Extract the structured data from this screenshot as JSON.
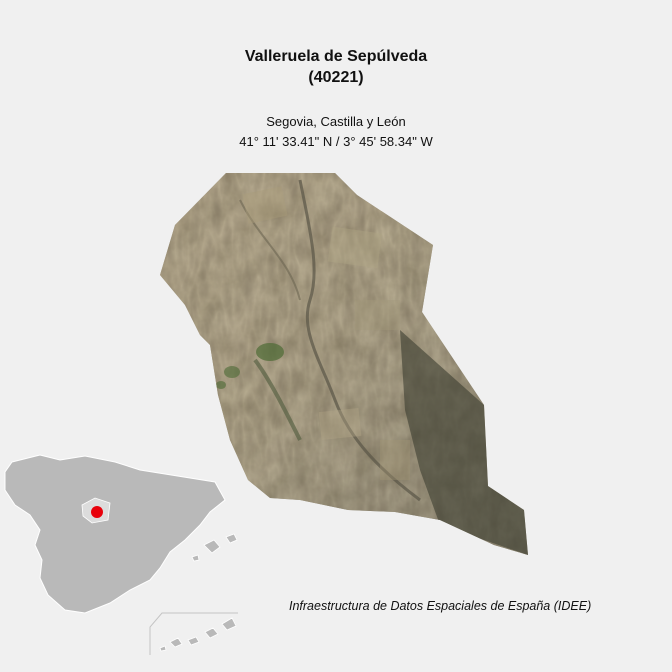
{
  "header": {
    "municipality": "Valleruela de Sepúlveda",
    "code": "(40221)"
  },
  "location": {
    "region": "Segovia, Castilla y León",
    "coordinates": "41° 11' 33.41\" N / 3° 45' 58.34\" W"
  },
  "source": "Infraestructura de Datos Espaciales de España (IDEE)",
  "colors": {
    "background": "#f0f0f0",
    "inset_land": "#b9b9b9",
    "inset_highlight": "#dcdcdc",
    "location_marker": "#e8000b"
  }
}
